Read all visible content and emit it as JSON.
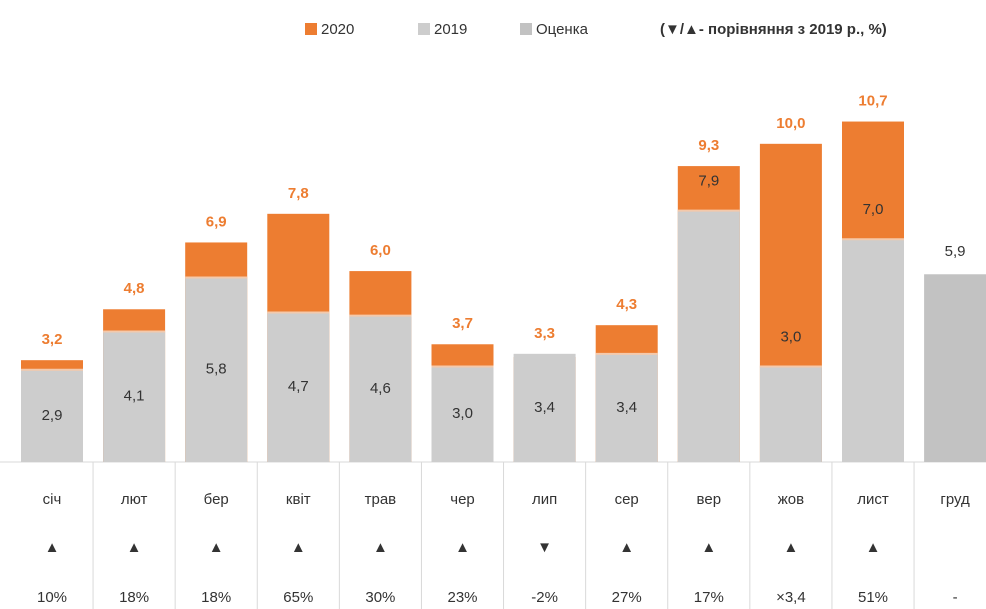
{
  "chart_data": {
    "type": "bar",
    "note": "(▼/▲- порівняння з 2019 р., %)",
    "categories": [
      "січ",
      "лют",
      "бер",
      "квіт",
      "трав",
      "чер",
      "лип",
      "сер",
      "вер",
      "жов",
      "лист",
      "груд"
    ],
    "ylim": [
      0,
      11
    ],
    "series": [
      {
        "name": "2020",
        "color": "#ed7d31",
        "values": [
          3.2,
          4.8,
          6.9,
          7.8,
          6.0,
          3.7,
          3.3,
          4.3,
          9.3,
          10.0,
          10.7,
          null
        ],
        "value_labels": [
          "3,2",
          "4,8",
          "6,9",
          "7,8",
          "6,0",
          "3,7",
          "3,3",
          "4,3",
          "9,3",
          "10,0",
          "10,7",
          null
        ]
      },
      {
        "name": "2019",
        "color": "#cdcdcd",
        "values": [
          2.9,
          4.1,
          5.8,
          4.7,
          4.6,
          3.0,
          3.4,
          3.4,
          7.9,
          3.0,
          7.0,
          null
        ],
        "value_labels": [
          "2,9",
          "4,1",
          "5,8",
          "4,7",
          "4,6",
          "3,0",
          "3,4",
          "3,4",
          "7,9",
          "3,0",
          "7,0",
          null
        ]
      },
      {
        "name": "Оценка",
        "color": "#c2c2c2",
        "values": [
          null,
          null,
          null,
          null,
          null,
          null,
          null,
          null,
          null,
          null,
          null,
          5.9
        ],
        "value_labels": [
          null,
          null,
          null,
          null,
          null,
          null,
          null,
          null,
          null,
          null,
          null,
          "5,9"
        ]
      }
    ],
    "change_markers": [
      "▲",
      "▲",
      "▲",
      "▲",
      "▲",
      "▲",
      "▼",
      "▲",
      "▲",
      "▲",
      "▲",
      null
    ],
    "change_labels": [
      "10%",
      "18%",
      "18%",
      "65%",
      "30%",
      "23%",
      "-2%",
      "27%",
      "17%",
      "×3,4",
      "51%",
      "-"
    ]
  }
}
